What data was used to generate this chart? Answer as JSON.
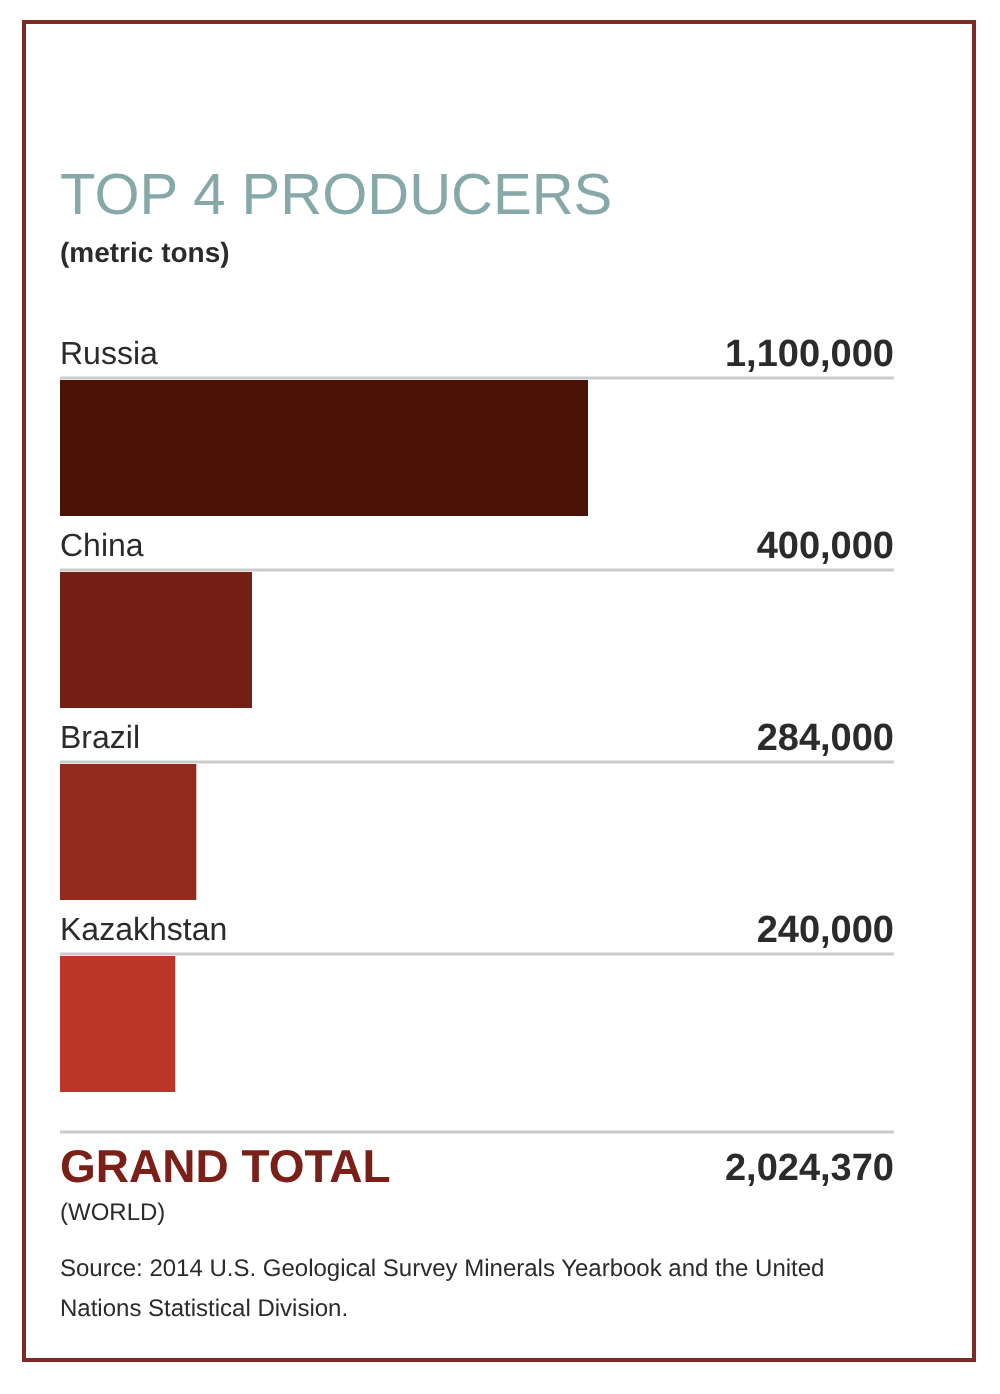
{
  "chart_data": {
    "type": "bar",
    "orientation": "horizontal",
    "title": "TOP 4 PRODUCERS",
    "subtitle": "(metric tons)",
    "categories": [
      "Russia",
      "China",
      "Brazil",
      "Kazakhstan"
    ],
    "values": [
      1100000,
      400000,
      284000,
      240000
    ],
    "value_labels": [
      "1,100,000",
      "400,000",
      "284,000",
      "240,000"
    ],
    "colors": [
      "#4a1306",
      "#731f13",
      "#922a1e",
      "#be3629"
    ],
    "annotations": [
      "GRAND TOTAL",
      "2,024,370",
      "(WORLD)",
      "Source: 2014 U.S. Geological Survey Minerals Yearbook and the United Nations Statistical Division."
    ]
  }
}
